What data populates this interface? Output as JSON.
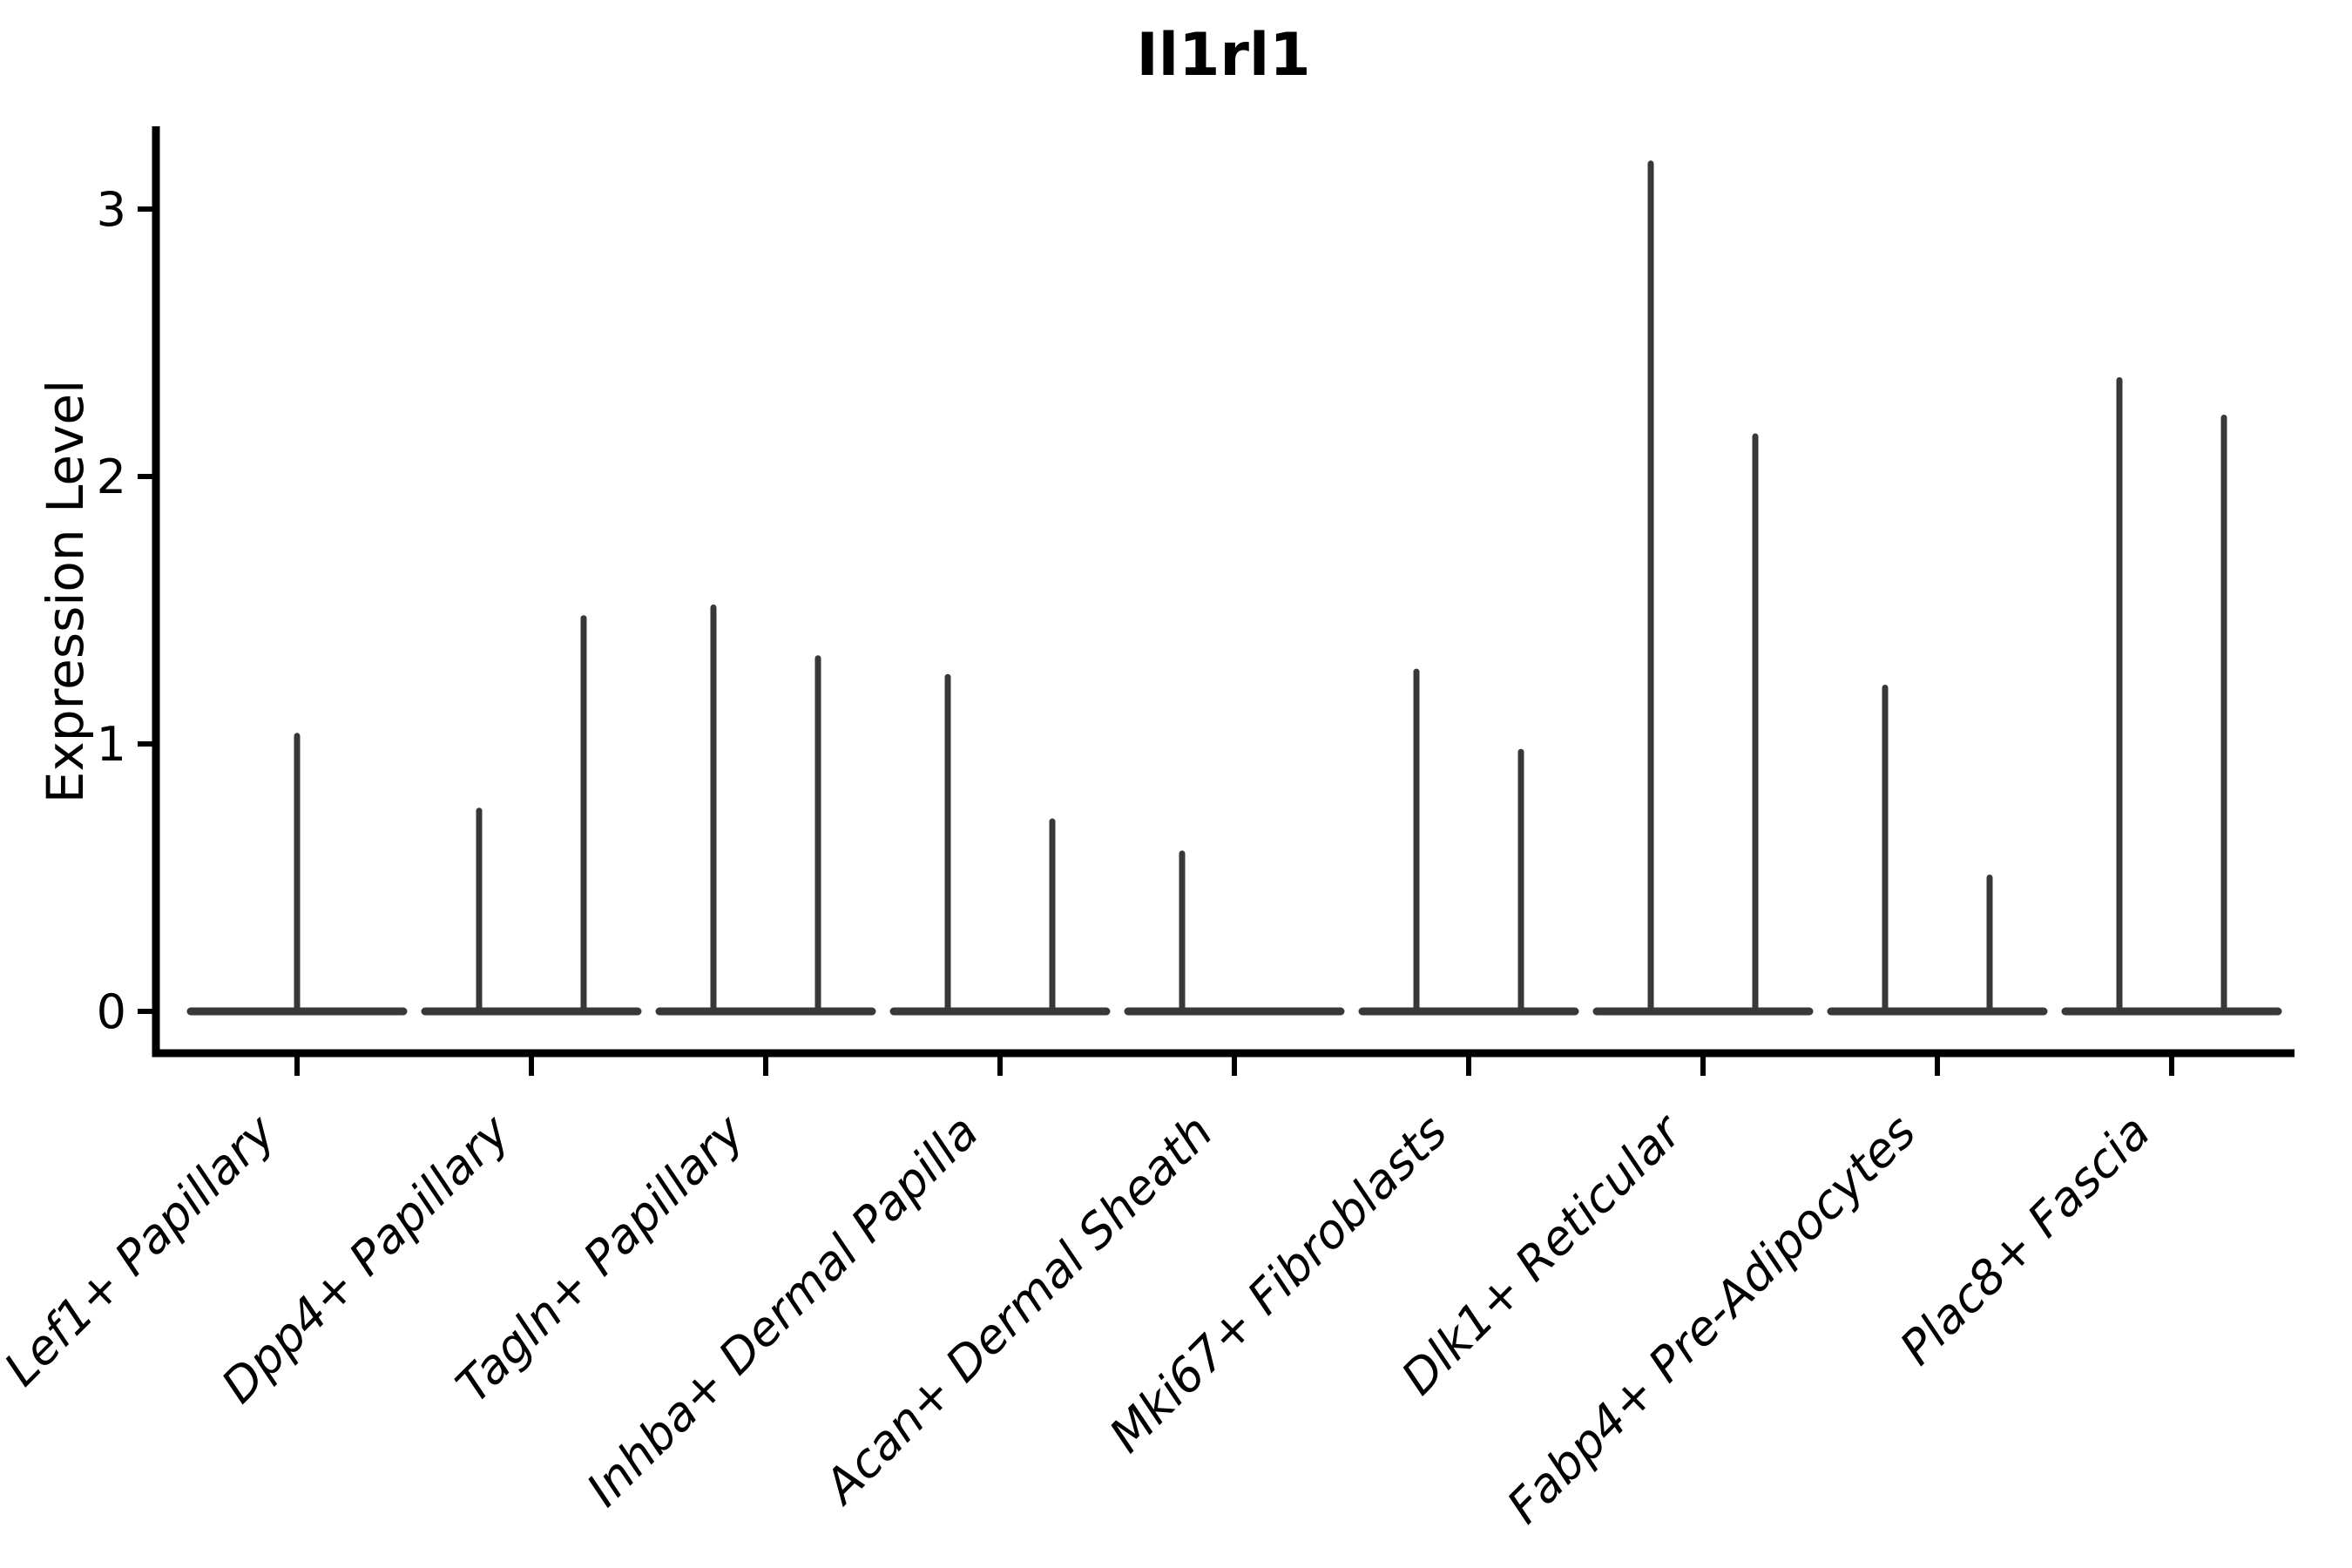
{
  "figure": {
    "title": "Il1rl1",
    "ylabel": "Expression Level"
  },
  "chart_data": {
    "type": "violin",
    "title": "Il1rl1",
    "xlabel": "",
    "ylabel": "Expression Level",
    "yticks": [
      0,
      1,
      2,
      3
    ],
    "ylim": [
      -0.16,
      3.31
    ],
    "grid": false,
    "legend": "none",
    "background": "#ffffff",
    "colors": {
      "violin_line": "#383838",
      "axis": "#000000",
      "text": "#000000"
    },
    "description": "Violin plot of Il1rl1 expression; each cluster shows a flat density at 0 with thin spikes rising to the maximum expression value of each violin.",
    "categories": [
      "Lef1+ Papillary",
      "Dpp4+ Papillary",
      "Tagln+ Papillary",
      "Inhba+ Dermal Papilla",
      "Acan+ Dermal Sheath",
      "Mki67+ Fibroblasts",
      "Dlk1+ Reticular",
      "Fabp4+ Pre-Adipocytes",
      "Plac8+ Fascia"
    ],
    "groups": [
      {
        "label": "Lef1+ Papillary",
        "spikes": [
          {
            "pos": "center",
            "max": 1.03
          }
        ]
      },
      {
        "label": "Dpp4+ Papillary",
        "spikes": [
          {
            "pos": "left",
            "max": 0.75
          },
          {
            "pos": "right",
            "max": 1.47
          }
        ]
      },
      {
        "label": "Tagln+ Papillary",
        "spikes": [
          {
            "pos": "left",
            "max": 1.51
          },
          {
            "pos": "right",
            "max": 1.32
          }
        ]
      },
      {
        "label": "Inhba+ Dermal Papilla",
        "spikes": [
          {
            "pos": "left",
            "max": 1.25
          },
          {
            "pos": "right",
            "max": 0.71
          }
        ]
      },
      {
        "label": "Acan+ Dermal Sheath",
        "spikes": [
          {
            "pos": "left",
            "max": 0.59
          }
        ]
      },
      {
        "label": "Mki67+ Fibroblasts",
        "spikes": [
          {
            "pos": "left",
            "max": 1.27
          },
          {
            "pos": "right",
            "max": 0.97
          }
        ]
      },
      {
        "label": "Dlk1+ Reticular",
        "spikes": [
          {
            "pos": "left",
            "max": 3.17
          },
          {
            "pos": "right",
            "max": 2.15
          }
        ]
      },
      {
        "label": "Fabp4+ Pre-Adipocytes",
        "spikes": [
          {
            "pos": "left",
            "max": 1.21
          },
          {
            "pos": "right",
            "max": 0.5
          }
        ]
      },
      {
        "label": "Plac8+ Fascia",
        "spikes": [
          {
            "pos": "left",
            "max": 2.36
          },
          {
            "pos": "right",
            "max": 2.22
          }
        ]
      }
    ]
  }
}
